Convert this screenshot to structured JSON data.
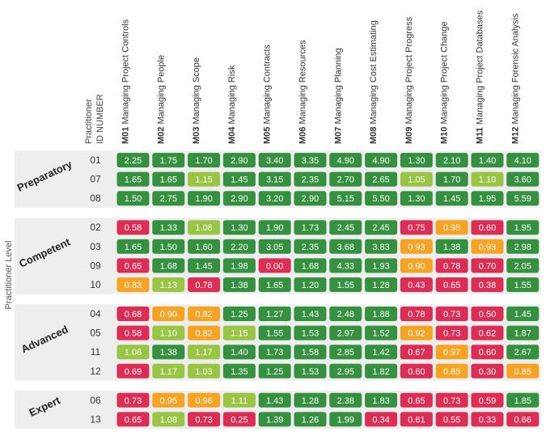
{
  "chart_data": {
    "type": "heatmap",
    "title": "",
    "ylabel": "Practitioner Level",
    "row_header": [
      "Practitioner",
      "ID NUMBER"
    ],
    "columns": [
      {
        "code": "M01",
        "name": "Managing Project Controls"
      },
      {
        "code": "M02",
        "name": "Managing People"
      },
      {
        "code": "M03",
        "name": "Managing Scope"
      },
      {
        "code": "M04",
        "name": "Managing Risk"
      },
      {
        "code": "M05",
        "name": "Managing Contracts"
      },
      {
        "code": "M06",
        "name": "Managing Resources"
      },
      {
        "code": "M07",
        "name": "Managing Planning"
      },
      {
        "code": "M08",
        "name": "Managing Cost Estimating"
      },
      {
        "code": "M09",
        "name": "Managing Project Progress"
      },
      {
        "code": "M10",
        "name": "Managing Project Change"
      },
      {
        "code": "M11",
        "name": "Managing Project Databases"
      },
      {
        "code": "M12",
        "name": "Managing Forensic Analysis"
      }
    ],
    "groups": [
      {
        "level": "Preparatory",
        "rows": [
          {
            "id": "01",
            "values": [
              "2.25",
              "1.75",
              "1.70",
              "2.90",
              "3.40",
              "3.35",
              "4.90",
              "4.90",
              "1.30",
              "2.10",
              "1.40",
              "4.10"
            ]
          },
          {
            "id": "07",
            "values": [
              "1.65",
              "1.65",
              "1.15",
              "1.45",
              "3.15",
              "2.35",
              "2.70",
              "2.65",
              "1.05",
              "1.70",
              "1.10",
              "3.60"
            ]
          },
          {
            "id": "08",
            "values": [
              "1.50",
              "2.75",
              "1.90",
              "2.90",
              "3.20",
              "2.90",
              "5.15",
              "5.50",
              "1.30",
              "1.45",
              "1.95",
              "5.59"
            ]
          }
        ]
      },
      {
        "level": "Competent",
        "rows": [
          {
            "id": "02",
            "values": [
              "0.58",
              "1.33",
              "1.08",
              "1.30",
              "1.90",
              "1.73",
              "2.45",
              "2.45",
              "0.75",
              "0.95",
              "0.60",
              "1.95"
            ]
          },
          {
            "id": "03",
            "values": [
              "1.65",
              "1.50",
              "1.60",
              "2.20",
              "3.05",
              "2.35",
              "3.68",
              "3.83",
              "0.93",
              "1.38",
              "0.93",
              "2.98"
            ]
          },
          {
            "id": "09",
            "values": [
              "0.65",
              "1.68",
              "1.45",
              "1.98",
              "0.00",
              "1.68",
              "4.33",
              "1.93",
              "0.90",
              "0.78",
              "0.70",
              "2.05"
            ]
          },
          {
            "id": "10",
            "values": [
              "0.83",
              "1.13",
              "0.78",
              "1.38",
              "1.65",
              "1.20",
              "1.55",
              "1.28",
              "0.43",
              "0.65",
              "0.38",
              "1.55"
            ]
          }
        ]
      },
      {
        "level": "Advanced",
        "rows": [
          {
            "id": "04",
            "values": [
              "0.68",
              "0.90",
              "0.82",
              "1.25",
              "1.27",
              "1.43",
              "2.48",
              "1.88",
              "0.78",
              "0.73",
              "0.50",
              "1.45"
            ]
          },
          {
            "id": "05",
            "values": [
              "0.58",
              "1.10",
              "0.82",
              "1.15",
              "1.55",
              "1.53",
              "2.97",
              "1.52",
              "0.92",
              "0.73",
              "0.62",
              "1.87"
            ]
          },
          {
            "id": "11",
            "values": [
              "1.08",
              "1.38",
              "1.17",
              "1.40",
              "1.73",
              "1.58",
              "2.85",
              "1.42",
              "0.67",
              "0.97",
              "0.60",
              "2.67"
            ]
          },
          {
            "id": "12",
            "values": [
              "0.69",
              "1.17",
              "1.03",
              "1.35",
              "1.25",
              "1.53",
              "2.95",
              "1.82",
              "0.60",
              "0.85",
              "0.30",
              "0.85"
            ]
          }
        ]
      },
      {
        "level": "Expert",
        "rows": [
          {
            "id": "06",
            "values": [
              "0.73",
              "0.95",
              "0.96",
              "1.11",
              "1.43",
              "1.28",
              "2.38",
              "1.83",
              "0.65",
              "0.73",
              "0.59",
              "1.85"
            ]
          },
          {
            "id": "13",
            "values": [
              "0.65",
              "1.08",
              "0.73",
              "0.25",
              "1.39",
              "1.26",
              "1.99",
              "0.34",
              "0.61",
              "0.55",
              "0.33",
              "0.66"
            ]
          }
        ]
      }
    ],
    "color_scale": [
      {
        "max": 0.8,
        "color": "#dc2e55"
      },
      {
        "max": 1.0,
        "color": "#f6a324"
      },
      {
        "max": 1.2,
        "color": "#9ac443"
      },
      {
        "max": 100,
        "color": "#35903f"
      }
    ],
    "colors": {
      "group_band": "#eeeeee",
      "cell_text": "#ffffff",
      "label_text": "#333333",
      "light_label_text": "#666666"
    }
  }
}
